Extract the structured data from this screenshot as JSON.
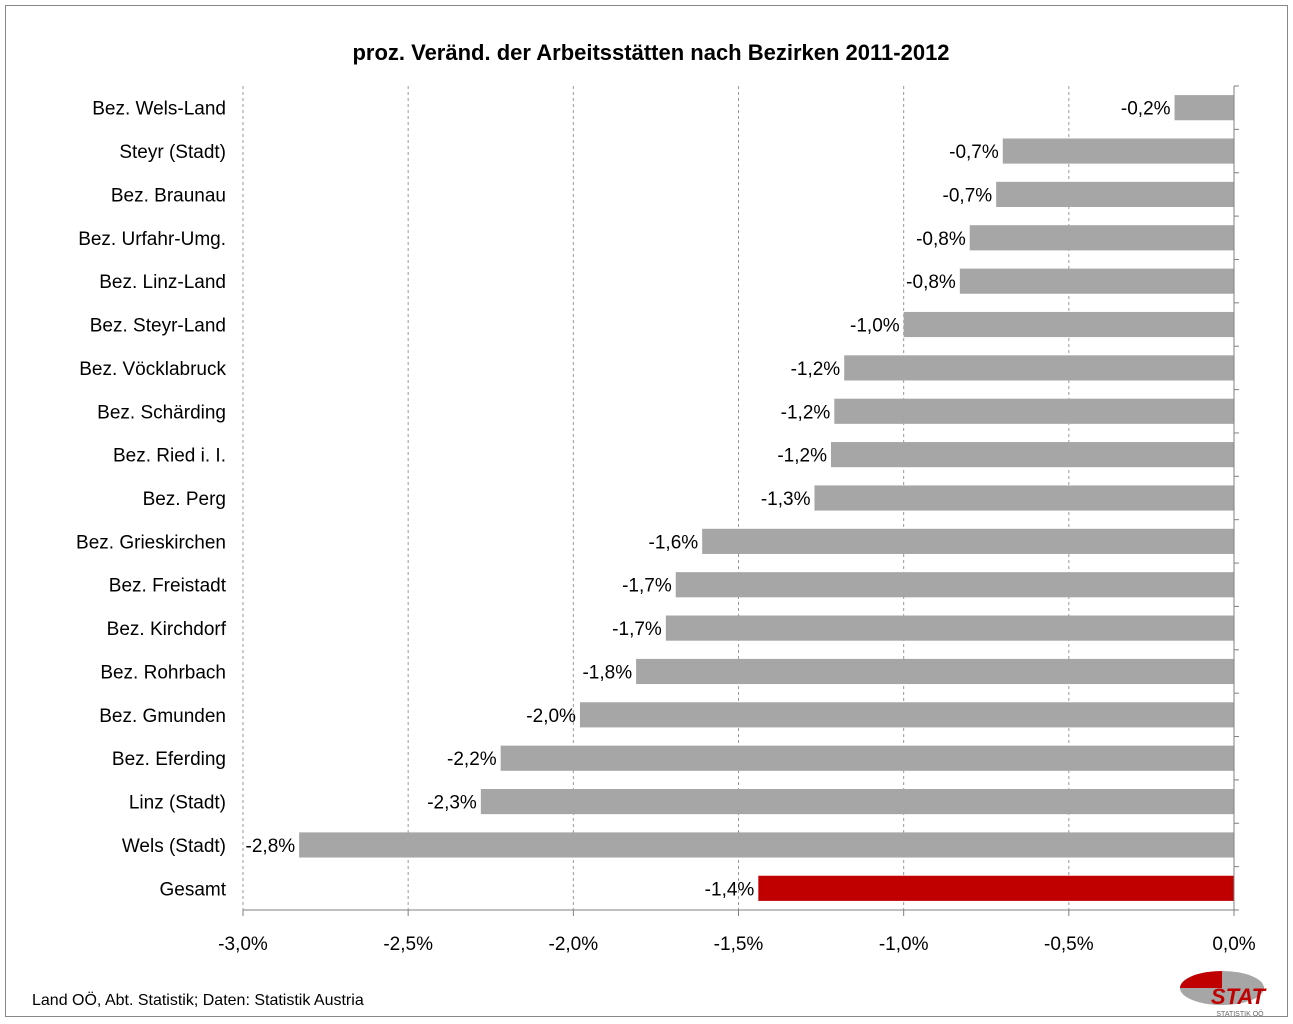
{
  "chart_data": {
    "type": "bar",
    "orientation": "horizontal",
    "title": "proz. Veränd. der Arbeitsstätten nach Bezirken 2011-2012",
    "categories": [
      "Bez. Wels-Land",
      "Steyr (Stadt)",
      "Bez. Braunau",
      "Bez. Urfahr-Umg.",
      "Bez. Linz-Land",
      "Bez. Steyr-Land",
      "Bez. Vöcklabruck",
      "Bez. Schärding",
      "Bez. Ried i. I.",
      "Bez. Perg",
      "Bez. Grieskirchen",
      "Bez. Freistadt",
      "Bez. Kirchdorf",
      "Bez. Rohrbach",
      "Bez. Gmunden",
      "Bez. Eferding",
      "Linz (Stadt)",
      "Wels (Stadt)",
      "Gesamt"
    ],
    "values": [
      -0.18,
      -0.7,
      -0.72,
      -0.8,
      -0.83,
      -1.0,
      -1.18,
      -1.21,
      -1.22,
      -1.27,
      -1.61,
      -1.69,
      -1.72,
      -1.81,
      -1.98,
      -2.22,
      -2.28,
      -2.83,
      -1.44
    ],
    "data_labels": [
      "-0,2%",
      "-0,7%",
      "-0,7%",
      "-0,8%",
      "-0,8%",
      "-1,0%",
      "-1,2%",
      "-1,2%",
      "-1,2%",
      "-1,3%",
      "-1,6%",
      "-1,7%",
      "-1,7%",
      "-1,8%",
      "-2,0%",
      "-2,2%",
      "-2,3%",
      "-2,8%",
      "-1,4%"
    ],
    "xlim": [
      -3.0,
      0.0
    ],
    "xticks": [
      -3.0,
      -2.5,
      -2.0,
      -1.5,
      -1.0,
      -0.5,
      0.0
    ],
    "xtick_labels": [
      "-3,0%",
      "-2,5%",
      "-2,0%",
      "-1,5%",
      "-1,0%",
      "-0,5%",
      "0,0%"
    ],
    "xlabel": "",
    "ylabel": "",
    "grid": "vertical dashed",
    "legend": "none",
    "colors": {
      "default": "#a6a6a6",
      "highlight": "#c00000",
      "highlight_category": "Gesamt"
    }
  },
  "footer": {
    "source": "Land OÖ, Abt. Statistik; Daten: Statistik Austria"
  },
  "logo": {
    "text": "STAT",
    "subtext": "STATISTIK OÖ",
    "colors": [
      "#c00000",
      "#a6a6a6"
    ]
  }
}
